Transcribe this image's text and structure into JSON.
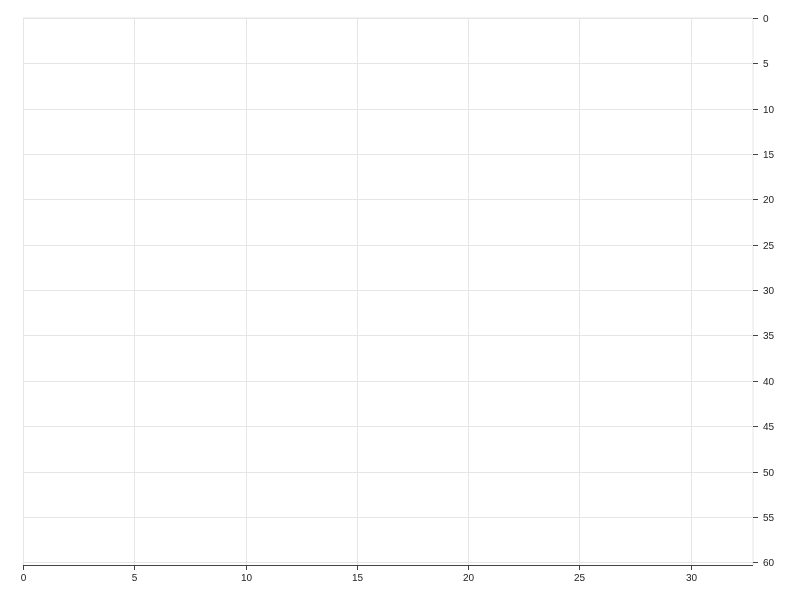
{
  "chart_data": {
    "type": "scatter",
    "title": "",
    "xlabel": "",
    "ylabel": "",
    "xlim": [
      0,
      32.8
    ],
    "ylim": [
      0,
      60.3
    ],
    "y_inverted": true,
    "y_axis_side": "right",
    "x_ticks": [
      0,
      5,
      10,
      15,
      20,
      25,
      30
    ],
    "y_ticks": [
      0,
      5,
      10,
      15,
      20,
      25,
      30,
      35,
      40,
      45,
      50,
      55,
      60
    ],
    "grid": true,
    "series": [],
    "colors": {
      "grid": "#e6e6e6",
      "axis": "#444444",
      "text": "#222222"
    }
  }
}
